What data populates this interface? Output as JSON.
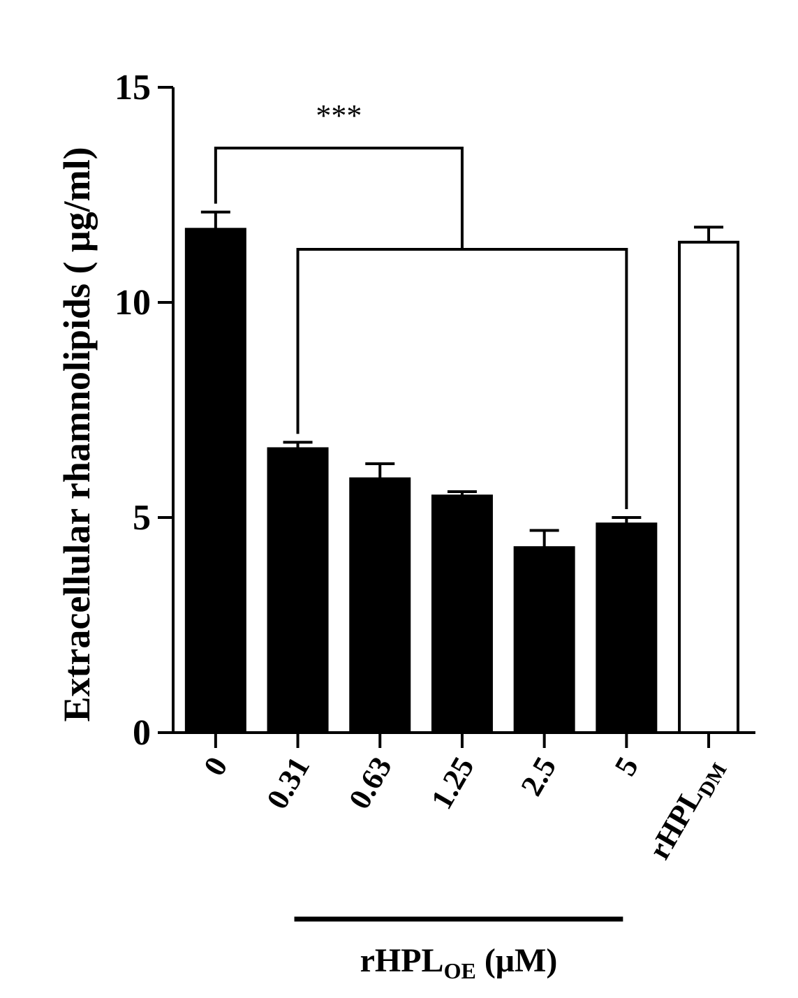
{
  "chart_data": {
    "type": "bar",
    "ylabel": "Extracellular rhamnolipids ( μg/ml)",
    "ylim": [
      0,
      15
    ],
    "yticks": [
      0,
      5,
      10,
      15
    ],
    "categories": [
      {
        "main": "0",
        "sub": ""
      },
      {
        "main": "0.31",
        "sub": ""
      },
      {
        "main": "0.63",
        "sub": ""
      },
      {
        "main": "1.25",
        "sub": ""
      },
      {
        "main": "2.5",
        "sub": ""
      },
      {
        "main": "5",
        "sub": ""
      },
      {
        "main": "rHPL",
        "sub": "DM"
      }
    ],
    "values": [
      11.7,
      6.6,
      5.9,
      5.5,
      4.3,
      4.85,
      11.4
    ],
    "errors": [
      0.4,
      0.15,
      0.35,
      0.1,
      0.4,
      0.15,
      0.35
    ],
    "bar_colors": [
      "#000000",
      "#000000",
      "#000000",
      "#000000",
      "#000000",
      "#000000",
      "#ffffff"
    ],
    "group_label": {
      "prefix": "rHPL",
      "sub": "OE",
      "suffix": " (μM)"
    },
    "group_range": [
      1,
      5
    ],
    "significance": {
      "text": "***",
      "from_index": 0,
      "to_first": 1,
      "to_last": 5
    }
  }
}
